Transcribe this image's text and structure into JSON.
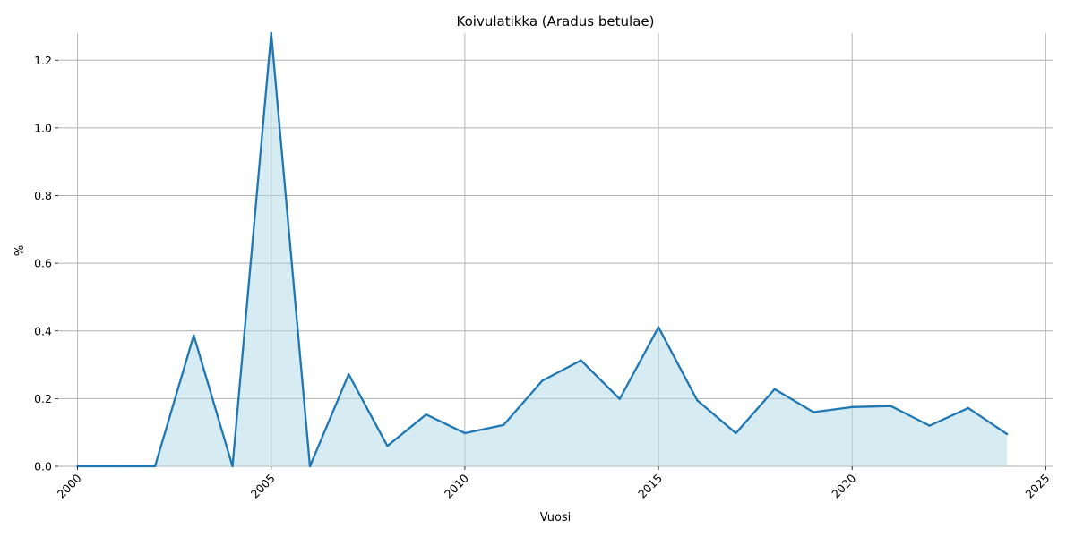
{
  "chart_data": {
    "type": "area",
    "title": "Koivulatikka (Aradus betulae)",
    "xlabel": "Vuosi",
    "ylabel": "%",
    "x": [
      2000,
      2001,
      2002,
      2003,
      2004,
      2005,
      2006,
      2007,
      2008,
      2009,
      2010,
      2011,
      2012,
      2013,
      2014,
      2015,
      2016,
      2017,
      2018,
      2019,
      2020,
      2021,
      2022,
      2023,
      2024
    ],
    "series": [
      {
        "values": [
          0,
          0,
          0,
          0.387,
          0,
          1.28,
          0,
          0.272,
          0.06,
          0.153,
          0.098,
          0.122,
          0.253,
          0.313,
          0.199,
          0.411,
          0.195,
          0.098,
          0.228,
          0.16,
          0.175,
          0.178,
          0.12,
          0.172,
          0.095
        ]
      }
    ],
    "xlim": [
      1999.5,
      2025.2
    ],
    "ylim": [
      0,
      1.28
    ],
    "x_ticks": [
      2000,
      2005,
      2010,
      2015,
      2020,
      2025
    ],
    "y_ticks": [
      0.0,
      0.2,
      0.4,
      0.6,
      0.8,
      1.0,
      1.2
    ],
    "y_tick_labels": [
      "0.0",
      "0.2",
      "0.4",
      "0.6",
      "0.8",
      "1.0",
      "1.2"
    ],
    "grid": true,
    "colors": {
      "line": "#1f77b4",
      "fill": "#add8e6"
    }
  }
}
